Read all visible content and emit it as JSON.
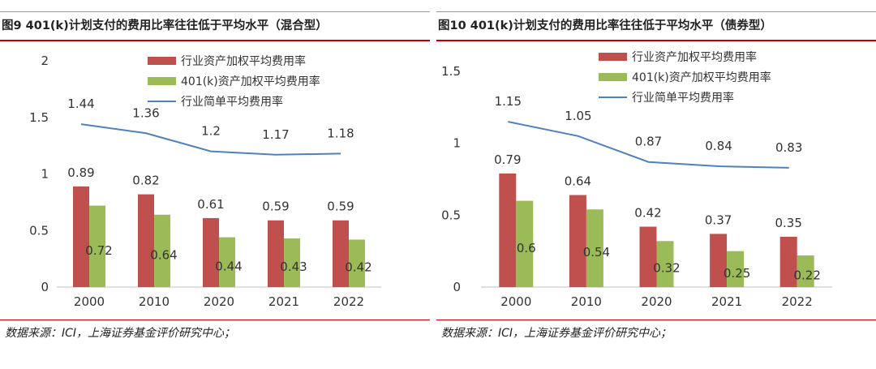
{
  "colors": {
    "industry_weighted": "#c0504d",
    "k401_weighted": "#9bbb59",
    "industry_simple": "#4f81bd",
    "accent_red": "#c00000"
  },
  "chart_data": [
    {
      "type": "bar",
      "title": "图9 401(k)计划支付的费用比率往往低于平均水平（混合型）",
      "source": "数据来源：ICI，上海证券基金评价研究中心；",
      "categories": [
        "2000",
        "2010",
        "2020",
        "2021",
        "2022"
      ],
      "y_ticks": [
        "0",
        "0.5",
        "1",
        "1.5",
        "2"
      ],
      "ylim": [
        0,
        2
      ],
      "legend_position": "top-center",
      "grid": false,
      "series": [
        {
          "name": "行业资产加权平均费用率",
          "type": "bar",
          "values": [
            0.89,
            0.82,
            0.61,
            0.59,
            0.59
          ],
          "labels": [
            "0.89",
            "0.82",
            "0.61",
            "0.59",
            "0.59"
          ]
        },
        {
          "name": "401(k)资产加权平均费用率",
          "type": "bar",
          "values": [
            0.72,
            0.64,
            0.44,
            0.43,
            0.42
          ],
          "labels": [
            "0.72",
            "0.64",
            "0.44",
            "0.43",
            "0.42"
          ]
        },
        {
          "name": "行业简单平均费用率",
          "type": "line",
          "values": [
            1.44,
            1.36,
            1.2,
            1.17,
            1.18
          ],
          "labels": [
            "1.44",
            "1.36",
            "1.2",
            "1.17",
            "1.18"
          ]
        }
      ]
    },
    {
      "type": "bar",
      "title": "图10 401(k)计划支付的费用比率往往低于平均水平（债券型）",
      "source": "数据来源：ICI，上海证券基金评价研究中心；",
      "categories": [
        "2000",
        "2010",
        "2020",
        "2021",
        "2022"
      ],
      "y_ticks": [
        "0",
        "0.5",
        "1",
        "1.5"
      ],
      "ylim": [
        0,
        1.5
      ],
      "legend_position": "top-right",
      "grid": false,
      "series": [
        {
          "name": "行业资产加权平均费用率",
          "type": "bar",
          "values": [
            0.79,
            0.64,
            0.42,
            0.37,
            0.35
          ],
          "labels": [
            "0.79",
            "0.64",
            "0.42",
            "0.37",
            "0.35"
          ]
        },
        {
          "name": "401(k)资产加权平均费用率",
          "type": "bar",
          "values": [
            0.6,
            0.54,
            0.32,
            0.25,
            0.22
          ],
          "labels": [
            "0.6",
            "0.54",
            "0.32",
            "0.25",
            "0.22"
          ]
        },
        {
          "name": "行业简单平均费用率",
          "type": "line",
          "values": [
            1.15,
            1.05,
            0.87,
            0.84,
            0.83
          ],
          "labels": [
            "1.15",
            "1.05",
            "0.87",
            "0.84",
            "0.83"
          ]
        }
      ]
    }
  ]
}
